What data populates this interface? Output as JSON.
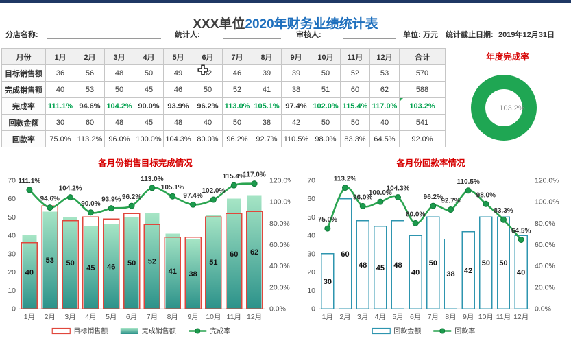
{
  "header": {
    "title_prefix": "XXX单位",
    "title_main": "2020年财务业绩统计表"
  },
  "info": {
    "branch_label": "分店名称:",
    "statistician_label": "统计人:",
    "reviewer_label": "审核人:",
    "unit_label": "单位:",
    "unit_value": "万元",
    "deadline_label": "统计截止日期:",
    "deadline_value": "2019年12月31日"
  },
  "table": {
    "corner_label": "月份",
    "columns": [
      "1月",
      "2月",
      "3月",
      "4月",
      "5月",
      "6月",
      "7月",
      "8月",
      "9月",
      "10月",
      "11月",
      "12月",
      "合计"
    ],
    "rows": [
      {
        "label": "目标销售额",
        "values": [
          "36",
          "56",
          "48",
          "50",
          "49",
          "52",
          "46",
          "39",
          "39",
          "50",
          "52",
          "53",
          "570"
        ]
      },
      {
        "label": "完成销售额",
        "values": [
          "40",
          "53",
          "50",
          "45",
          "46",
          "50",
          "52",
          "41",
          "38",
          "51",
          "60",
          "62",
          "588"
        ]
      },
      {
        "label": "完成率",
        "highlight": true,
        "values": [
          "111.1%",
          "94.6%",
          "104.2%",
          "90.0%",
          "93.9%",
          "96.2%",
          "113.0%",
          "105.1%",
          "97.4%",
          "102.0%",
          "115.4%",
          "117.0%",
          "103.2%"
        ]
      },
      {
        "label": "回款金额",
        "values": [
          "30",
          "60",
          "48",
          "45",
          "48",
          "40",
          "50",
          "38",
          "42",
          "50",
          "50",
          "40",
          "541"
        ]
      },
      {
        "label": "回款率",
        "values": [
          "75.0%",
          "113.2%",
          "96.0%",
          "100.0%",
          "104.3%",
          "80.0%",
          "96.2%",
          "92.7%",
          "110.5%",
          "98.0%",
          "83.3%",
          "64.5%",
          "92.0%"
        ]
      }
    ],
    "highlight_color": "#00a14e",
    "cursor_cell": {
      "row_label": "目标销售额",
      "column": "6月"
    }
  },
  "chart_data": [
    {
      "type": "donut",
      "title": "年度完成率",
      "label": "103.2%",
      "value": 103.2,
      "ring_color": "#1fa653",
      "label_color": "#8a8a8a"
    },
    {
      "type": "bar+line",
      "title": "各月份销售目标完成情况",
      "categories": [
        "1月",
        "2月",
        "3月",
        "4月",
        "5月",
        "6月",
        "7月",
        "8月",
        "9月",
        "10月",
        "11月",
        "12月"
      ],
      "ylim": [
        0,
        70
      ],
      "y_step": 10,
      "y2lim": [
        0,
        120
      ],
      "y2_step": 20,
      "legend_position": "bottom",
      "series": [
        {
          "name": "目标销售额",
          "type": "bar",
          "bar_style": "outline",
          "color": "#e0473c",
          "values": [
            36,
            56,
            48,
            50,
            49,
            52,
            46,
            39,
            39,
            50,
            52,
            53
          ]
        },
        {
          "name": "完成销售额",
          "type": "bar",
          "bar_style": "gradient",
          "color_top": "#a6e5c5",
          "color_bottom": "#2c928a",
          "show_values": true,
          "value_bold": true,
          "values": [
            40,
            53,
            50,
            45,
            46,
            50,
            52,
            41,
            38,
            51,
            60,
            62
          ]
        },
        {
          "name": "完成率",
          "type": "line",
          "axis": "right",
          "color": "#2aa450",
          "marker_color": "#1c9b4d",
          "marker_edge": "#107a39",
          "values": [
            111.1,
            94.6,
            104.2,
            90.0,
            93.9,
            96.2,
            113.0,
            105.1,
            97.4,
            102.0,
            115.4,
            117.0
          ],
          "labels": [
            "111.1%",
            "94.6%",
            "104.2%",
            "90.0%",
            "93.9%",
            "96.2%",
            "113.0%",
            "105.1%",
            "97.4%",
            "102.0%",
            "115.4%",
            "117.0%"
          ]
        }
      ]
    },
    {
      "type": "bar+line",
      "title": "各月份回款率情况",
      "categories": [
        "1月",
        "2月",
        "3月",
        "4月",
        "5月",
        "6月",
        "7月",
        "8月",
        "9月",
        "10月",
        "11月",
        "12月"
      ],
      "ylim": [
        0,
        70
      ],
      "y_step": 10,
      "y2lim": [
        0,
        120
      ],
      "y2_step": 20,
      "legend_position": "bottom",
      "series": [
        {
          "name": "回款金额",
          "type": "bar",
          "bar_style": "outline",
          "color": "#2e95af",
          "show_values": true,
          "value_bold": false,
          "values": [
            30,
            60,
            48,
            45,
            48,
            40,
            50,
            38,
            42,
            50,
            50,
            40
          ]
        },
        {
          "name": "回款率",
          "type": "line",
          "axis": "right",
          "color": "#2aa450",
          "marker_color": "#1c9b4d",
          "marker_edge": "#107a39",
          "values": [
            75.0,
            113.2,
            96.0,
            100.0,
            104.3,
            80.0,
            96.2,
            92.7,
            110.5,
            98.0,
            83.3,
            64.5
          ],
          "labels": [
            "75.0%",
            "113.2%",
            "96.0%",
            "100.0%",
            "104.3%",
            "80.0%",
            "96.2%",
            "92.7%",
            "110.5%",
            "98.0%",
            "83.3%",
            "64.5%"
          ]
        }
      ]
    }
  ]
}
